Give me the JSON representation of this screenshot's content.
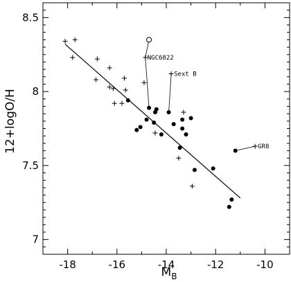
{
  "chart_data": {
    "type": "scatter",
    "title": "",
    "xlabel": "M",
    "xlabel_sub": "B",
    "ylabel": "12+logO/H",
    "xlim": [
      -19,
      -9
    ],
    "ylim": [
      6.9,
      8.6
    ],
    "xticks": [
      -18,
      -16,
      -14,
      -12,
      -10
    ],
    "xtick_labels": [
      "-18",
      "-16",
      "-14",
      "-12",
      "-10"
    ],
    "yticks": [
      7,
      7.5,
      8,
      8.5
    ],
    "ytick_labels": [
      "7",
      "7.5",
      "8",
      "8.5"
    ],
    "grid": false,
    "series": [
      {
        "marker": "plus",
        "points": [
          [
            -18.1,
            8.34
          ],
          [
            -17.7,
            8.35
          ],
          [
            -17.8,
            8.23
          ],
          [
            -16.8,
            8.22
          ],
          [
            -16.3,
            8.16
          ],
          [
            -16.85,
            8.08
          ],
          [
            -16.3,
            8.03
          ],
          [
            -16.15,
            8.02
          ],
          [
            -15.7,
            8.09
          ],
          [
            -15.65,
            8.01
          ],
          [
            -16.1,
            7.92
          ],
          [
            -15.8,
            7.92
          ],
          [
            -14.85,
            8.23
          ],
          [
            -14.9,
            8.06
          ],
          [
            -13.8,
            8.12
          ],
          [
            -13.3,
            7.86
          ],
          [
            -14.45,
            7.72
          ],
          [
            -13.5,
            7.55
          ],
          [
            -12.95,
            7.36
          ],
          [
            -10.4,
            7.63
          ]
        ]
      },
      {
        "marker": "dot",
        "points": [
          [
            -15.55,
            7.94
          ],
          [
            -14.7,
            7.89
          ],
          [
            -13.9,
            7.86
          ],
          [
            -14.4,
            7.88
          ],
          [
            -14.45,
            7.86
          ],
          [
            -14.8,
            7.81
          ],
          [
            -14.5,
            7.79
          ],
          [
            -13.35,
            7.81
          ],
          [
            -13,
            7.82
          ],
          [
            -13.7,
            7.78
          ],
          [
            -13.2,
            7.71
          ],
          [
            -13.35,
            7.75
          ],
          [
            -15.05,
            7.76
          ],
          [
            -15.2,
            7.74
          ],
          [
            -14.2,
            7.71
          ],
          [
            -13.45,
            7.62
          ],
          [
            -12.85,
            7.47
          ],
          [
            -12.1,
            7.48
          ],
          [
            -11.2,
            7.6
          ],
          [
            -11.35,
            7.27
          ],
          [
            -11.45,
            7.22
          ]
        ]
      },
      {
        "marker": "open-circle",
        "points": [
          [
            -14.7,
            8.35
          ]
        ]
      }
    ],
    "fit_line": {
      "from": [
        -18.1,
        8.32
      ],
      "to": [
        -11.0,
        7.28
      ]
    },
    "annotations": [
      {
        "label": "NGC6822",
        "start": [
          -14.7,
          8.35
        ],
        "mid": [
          -14.85,
          8.23
        ],
        "end": [
          -14.7,
          7.89
        ]
      },
      {
        "label": "Sext B",
        "start": [
          -13.8,
          8.12
        ],
        "end": [
          -13.9,
          7.86
        ]
      },
      {
        "label": "GR8",
        "start": [
          -10.4,
          7.63
        ],
        "end": [
          -11.2,
          7.6
        ]
      }
    ]
  }
}
